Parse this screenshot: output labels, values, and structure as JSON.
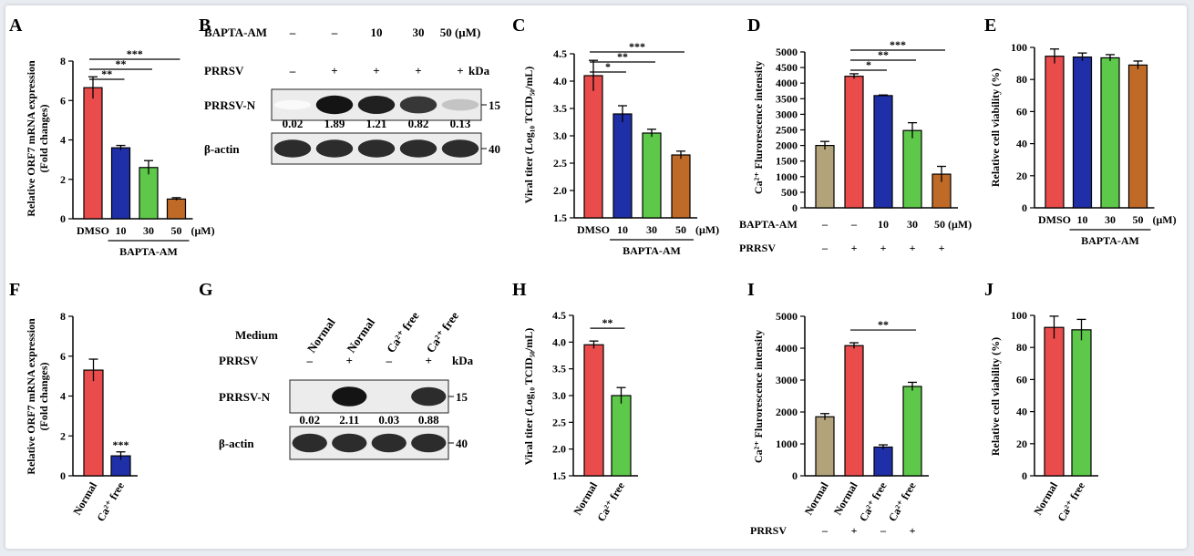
{
  "colors": {
    "red": "#ea4c4c",
    "blue": "#1f2fa8",
    "green": "#5ec84a",
    "brown": "#c06a28",
    "tan": "#b3a37a",
    "black": "#000000",
    "bg": "#ffffff"
  },
  "chart_data": [
    {
      "panel": "A",
      "type": "bar",
      "ylabel": "Relative ORF7 mRNA expression (Fold changes)",
      "ylim": [
        0,
        8
      ],
      "yticks": [
        "0",
        "2",
        "4",
        "6",
        "8"
      ],
      "categories": [
        "DMSO",
        "10",
        "30",
        "50"
      ],
      "unit_label": "(μM)",
      "group_label": "BAPTA-AM",
      "values": [
        6.65,
        3.6,
        2.6,
        1.0
      ],
      "errors": [
        0.55,
        0.12,
        0.35,
        0.07
      ],
      "colors": [
        "red",
        "blue",
        "green",
        "brown"
      ],
      "significance": [
        {
          "from": 0,
          "to": 1,
          "label": "**"
        },
        {
          "from": 0,
          "to": 2,
          "label": "**"
        },
        {
          "from": 0,
          "to": 3,
          "label": "***"
        }
      ]
    },
    {
      "panel": "C",
      "type": "bar",
      "ylabel": "Viral titer (Log₁₀ TCID₅₀/mL)",
      "ylim": [
        1.5,
        4.5
      ],
      "yticks": [
        "1.5",
        "2.0",
        "2.5",
        "3.0",
        "3.5",
        "4.0",
        "4.5"
      ],
      "categories": [
        "DMSO",
        "10",
        "30",
        "50"
      ],
      "unit_label": "(μM)",
      "group_label": "BAPTA-AM",
      "values": [
        4.1,
        3.4,
        3.05,
        2.65
      ],
      "errors": [
        0.28,
        0.15,
        0.07,
        0.07
      ],
      "colors": [
        "red",
        "blue",
        "green",
        "brown"
      ],
      "significance": [
        {
          "from": 0,
          "to": 1,
          "label": "*"
        },
        {
          "from": 0,
          "to": 2,
          "label": "**"
        },
        {
          "from": 0,
          "to": 3,
          "label": "***"
        }
      ]
    },
    {
      "panel": "D",
      "type": "bar",
      "ylabel": "Ca²⁺ Flurorescence intensity",
      "ylim": [
        0,
        5000
      ],
      "yticks": [
        "0",
        "500",
        "1000",
        "1500",
        "2000",
        "2500",
        "3000",
        "3500",
        "4000",
        "4500",
        "5000"
      ],
      "categories": [
        "",
        "",
        "",
        "",
        ""
      ],
      "rows": [
        {
          "label": "BAPTA-AM",
          "values": [
            "–",
            "–",
            "10",
            "30",
            "50 (μM)"
          ]
        },
        {
          "label": "PRRSV",
          "values": [
            "–",
            "+",
            "+",
            "+",
            "+"
          ]
        }
      ],
      "values": [
        2000,
        4220,
        3600,
        2480,
        1080
      ],
      "errors": [
        130,
        80,
        20,
        250,
        250
      ],
      "colors": [
        "tan",
        "red",
        "blue",
        "green",
        "brown"
      ],
      "significance": [
        {
          "from": 1,
          "to": 2,
          "label": "*"
        },
        {
          "from": 1,
          "to": 3,
          "label": "**"
        },
        {
          "from": 1,
          "to": 4,
          "label": "***"
        }
      ]
    },
    {
      "panel": "E",
      "type": "bar",
      "ylabel": "Relative cell viability (%)",
      "ylim": [
        0,
        100
      ],
      "yticks": [
        "0",
        "20",
        "40",
        "60",
        "80",
        "100"
      ],
      "categories": [
        "DMSO",
        "10",
        "30",
        "50"
      ],
      "unit_label": "(μM)",
      "group_label": "BAPTA-AM",
      "values": [
        94.5,
        94.0,
        93.5,
        89.0
      ],
      "errors": [
        4.5,
        2.5,
        2.0,
        2.5
      ],
      "colors": [
        "red",
        "blue",
        "green",
        "brown"
      ],
      "significance": []
    },
    {
      "panel": "F",
      "type": "bar",
      "ylabel": "Relative ORF7 mRNA expression (Fold changes)",
      "ylim": [
        0,
        8
      ],
      "yticks": [
        "0",
        "2",
        "4",
        "6",
        "8"
      ],
      "categories": [
        "Normal",
        "Ca²⁺ free"
      ],
      "values": [
        5.3,
        1.0
      ],
      "errors": [
        0.55,
        0.2
      ],
      "colors": [
        "red",
        "blue"
      ],
      "annotations": [
        {
          "index": 1,
          "label": "***"
        }
      ],
      "significance": []
    },
    {
      "panel": "H",
      "type": "bar",
      "ylabel": "Viral titer (Log₁₀ TCID₅₀/mL)",
      "ylim": [
        1.5,
        4.5
      ],
      "yticks": [
        "1.5",
        "2.0",
        "2.5",
        "3.0",
        "3.5",
        "4.0",
        "4.5"
      ],
      "categories": [
        "Normal",
        "Ca²⁺ free"
      ],
      "values": [
        3.95,
        3.0
      ],
      "errors": [
        0.07,
        0.15
      ],
      "colors": [
        "red",
        "green"
      ],
      "significance": [
        {
          "from": 0,
          "to": 1,
          "label": "**"
        }
      ]
    },
    {
      "panel": "I",
      "type": "bar",
      "ylabel": "Ca²⁺ Flurorescence intensity",
      "ylim": [
        0,
        5000
      ],
      "yticks": [
        "0",
        "1000",
        "2000",
        "3000",
        "4000",
        "5000"
      ],
      "categories": [
        "Normal",
        "Normal",
        "Ca²⁺ free",
        "Ca²⁺ free"
      ],
      "rows": [
        {
          "label": "PRRSV",
          "values": [
            "–",
            "+",
            "–",
            "+"
          ]
        }
      ],
      "values": [
        1850,
        4080,
        900,
        2800
      ],
      "errors": [
        100,
        90,
        70,
        130
      ],
      "colors": [
        "tan",
        "red",
        "blue",
        "green"
      ],
      "significance": [
        {
          "from": 1,
          "to": 3,
          "label": "**"
        }
      ]
    },
    {
      "panel": "J",
      "type": "bar",
      "ylabel": "Relative cell viability (%)",
      "ylim": [
        0,
        100
      ],
      "yticks": [
        "0",
        "20",
        "40",
        "60",
        "80",
        "100"
      ],
      "categories": [
        "Normal",
        "Ca²⁺ free"
      ],
      "values": [
        92.5,
        91.0
      ],
      "errors": [
        7,
        6.5
      ],
      "colors": [
        "red",
        "green"
      ],
      "significance": []
    }
  ],
  "blots": [
    {
      "panel": "B",
      "header_rows": [
        {
          "label": "BAPTA-AM",
          "values": [
            "–",
            "–",
            "10",
            "30",
            "50 (μM)"
          ]
        },
        {
          "label": "PRRSV",
          "values": [
            "–",
            "+",
            "+",
            "+",
            "+"
          ]
        }
      ],
      "kda_label": "kDa",
      "bands": [
        {
          "label": "PRRSV-N",
          "marker": "15",
          "quant": [
            "0.02",
            "1.89",
            "1.21",
            "0.82",
            "0.13"
          ],
          "intensities": [
            0.02,
            1.0,
            0.95,
            0.85,
            0.25
          ]
        },
        {
          "label": "β-actin",
          "marker": "40",
          "quant": [],
          "intensities": [
            0.9,
            0.9,
            0.9,
            0.9,
            0.9
          ]
        }
      ]
    },
    {
      "panel": "G",
      "medium_label": "Medium",
      "medium_values": [
        "Normal",
        "Normal",
        "Ca²⁺ free",
        "Ca²⁺ free"
      ],
      "header_rows": [
        {
          "label": "PRRSV",
          "values": [
            "–",
            "+",
            "–",
            "+"
          ]
        }
      ],
      "kda_label": "kDa",
      "bands": [
        {
          "label": "PRRSV-N",
          "marker": "15",
          "quant": [
            "0.02",
            "2.11",
            "0.03",
            "0.88"
          ],
          "intensities": [
            0.0,
            1.0,
            0.0,
            0.9
          ]
        },
        {
          "label": "β-actin",
          "marker": "40",
          "quant": [],
          "intensities": [
            0.9,
            0.9,
            0.9,
            0.9
          ]
        }
      ]
    }
  ],
  "panel_labels": [
    "A",
    "B",
    "C",
    "D",
    "E",
    "F",
    "G",
    "H",
    "I",
    "J"
  ]
}
